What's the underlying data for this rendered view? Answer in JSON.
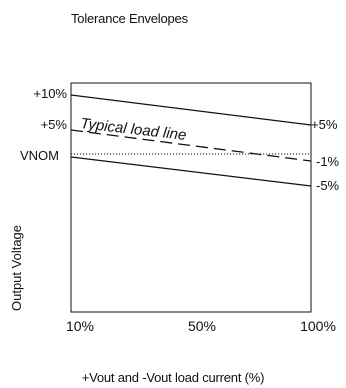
{
  "title": "Tolerance Envelopes",
  "y_axis_label": "Output Voltage",
  "x_axis_label": "+Vout and -Vout load current (%)",
  "left_labels": {
    "plus10": "+10%",
    "plus5": "+5%",
    "vnom": "VNOM"
  },
  "right_labels": {
    "plus5": "+5%",
    "minus1": "-1%",
    "minus5": "-5%"
  },
  "x_ticks": [
    "10%",
    "50%",
    "100%"
  ],
  "annotation": "Typical load line",
  "colors": {
    "line": "#111111",
    "background": "#ffffff"
  }
}
